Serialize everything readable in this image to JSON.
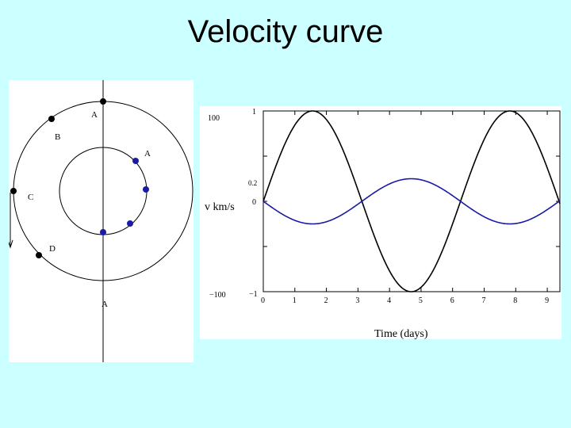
{
  "slide": {
    "title": "Velocity curve"
  },
  "orbit_diagram": {
    "outer_labels": [
      "A",
      "B",
      "C",
      "D"
    ],
    "inner_label": "A",
    "bottom_label": "A",
    "colors": {
      "outer_star": "#000000",
      "inner_star": "#1a1aa6"
    }
  },
  "velocity_graph": {
    "y_left_label": "v km/s",
    "y_left_ticks": [
      "100",
      "0",
      "−100"
    ],
    "y_right_ticks": [
      "1",
      "0.2",
      "0",
      "−1"
    ],
    "x_label": "Time (days)",
    "x_ticks": [
      "0",
      "1",
      "2",
      "3",
      "4",
      "5",
      "6",
      "7",
      "8",
      "9"
    ]
  },
  "chart_data": {
    "type": "line",
    "x_range": [
      0,
      9.4
    ],
    "y_range": [
      -1,
      1
    ],
    "series": [
      {
        "color": "#000000",
        "amplitude": 1.0,
        "period_days": 6.25,
        "phase_days": 0.0
      },
      {
        "color": "#1a1aa6",
        "amplitude": 0.25,
        "period_days": 6.25,
        "phase_days": 3.125
      }
    ]
  }
}
